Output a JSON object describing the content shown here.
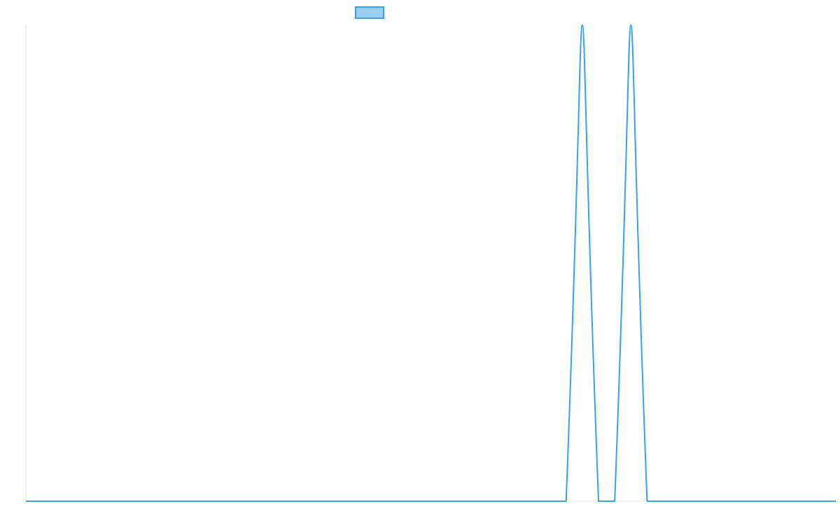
{
  "chart_data": {
    "type": "line",
    "title": "",
    "xlabel": "",
    "ylabel": "",
    "legend": {
      "placement": "top-center",
      "entries": [
        {
          "label": ""
        }
      ]
    },
    "grid": false,
    "xlim": [
      0,
      1
    ],
    "ylim": [
      0,
      1
    ],
    "series": [
      {
        "color": "#36a2eb",
        "fill_color": "#9ad0f5",
        "x": [
          0,
          0.667,
          0.687,
          0.707,
          0.727,
          0.747,
          0.767,
          0.786,
          1
        ],
        "y": [
          0,
          0,
          1,
          0,
          0,
          1,
          0,
          0,
          0
        ]
      }
    ]
  },
  "colors": {
    "axis": "#e6e6e6",
    "line": "#36a2eb",
    "legend_fill": "#9ad0f5"
  }
}
